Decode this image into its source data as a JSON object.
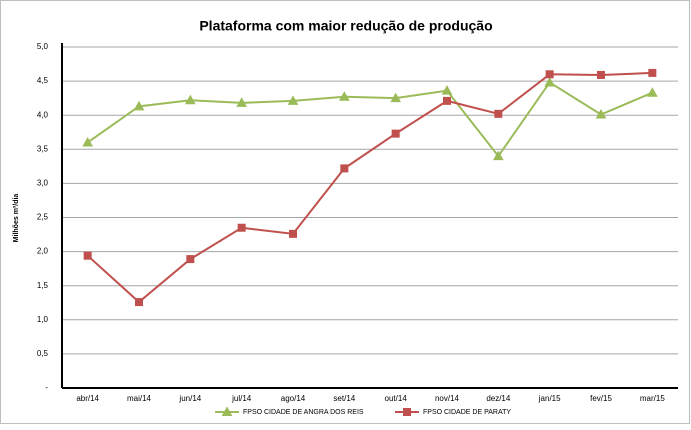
{
  "chart_data": {
    "type": "line",
    "title": "Plataforma com maior redução de produção",
    "y_label": "Milhões m³/dia",
    "categories": [
      "abr/14",
      "mai/14",
      "jun/14",
      "jul/14",
      "ago/14",
      "set/14",
      "out/14",
      "nov/14",
      "dez/14",
      "jan/15",
      "fev/15",
      "mar/15"
    ],
    "series": [
      {
        "name": "FPSO CIDADE DE ANGRA DOS REIS",
        "color": "#9bbb59",
        "marker": "triangle",
        "values": [
          3.6,
          4.13,
          4.22,
          4.18,
          4.21,
          4.27,
          4.25,
          4.36,
          3.4,
          4.48,
          4.01,
          4.33
        ]
      },
      {
        "name": "FPSO CIDADE DE PARATY",
        "color": "#c0504d",
        "marker": "square",
        "values": [
          1.94,
          1.26,
          1.89,
          2.35,
          2.26,
          3.22,
          3.73,
          4.21,
          4.02,
          4.6,
          4.59,
          4.62
        ]
      }
    ],
    "ylim": [
      0,
      5
    ],
    "yticks": [
      {
        "value": 0,
        "label": "-"
      },
      {
        "value": 0.5,
        "label": "0,5"
      },
      {
        "value": 1,
        "label": "1,0"
      },
      {
        "value": 1.5,
        "label": "1,5"
      },
      {
        "value": 2,
        "label": "2,0"
      },
      {
        "value": 2.5,
        "label": "2,5"
      },
      {
        "value": 3,
        "label": "3,0"
      },
      {
        "value": 3.5,
        "label": "3,5"
      },
      {
        "value": 4,
        "label": "4,0"
      },
      {
        "value": 4.5,
        "label": "4,5"
      },
      {
        "value": 5,
        "label": "5,0"
      }
    ],
    "grid": true,
    "legend": "bottom"
  }
}
